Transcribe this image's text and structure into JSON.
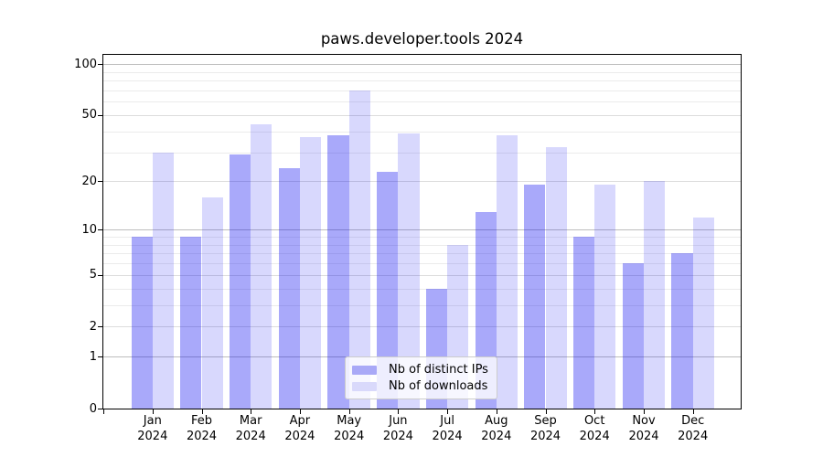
{
  "title": "paws.developer.tools 2024",
  "chart_data": {
    "type": "bar",
    "title": "paws.developer.tools 2024",
    "categories": [
      "Jan 2024",
      "Feb 2024",
      "Mar 2024",
      "Apr 2024",
      "May 2024",
      "Jun 2024",
      "Jul 2024",
      "Aug 2024",
      "Sep 2024",
      "Oct 2024",
      "Nov 2024",
      "Dec 2024"
    ],
    "x": {
      "months": [
        "Jan",
        "Feb",
        "Mar",
        "Apr",
        "May",
        "Jun",
        "Jul",
        "Aug",
        "Sep",
        "Oct",
        "Nov",
        "Dec"
      ],
      "year": "2024"
    },
    "series": [
      {
        "name": "Nb of distinct IPs",
        "fill": "rgba(10,10,240,0.35)",
        "swatch": "#a9a9f7",
        "values": [
          9,
          9,
          29,
          24,
          38,
          23,
          4,
          13,
          19,
          9,
          6,
          7
        ]
      },
      {
        "name": "Nb of downloads",
        "fill": "rgba(10,10,240,0.16)",
        "swatch": "#d9d9fb",
        "values": [
          30,
          16,
          44,
          37,
          70,
          39,
          8,
          38,
          32,
          19,
          20,
          12
        ]
      }
    ],
    "y_scale": "log10(1+y)",
    "y_ticks": [
      0,
      1,
      2,
      5,
      10,
      20,
      50,
      100
    ],
    "y_tick_labels": [
      "0",
      "1",
      "2",
      "5",
      "10",
      "20",
      "50",
      "100"
    ],
    "y_minor_gridlines": [
      3,
      4,
      6,
      7,
      8,
      9,
      30,
      40,
      60,
      70,
      80,
      90
    ],
    "y_decade_gridlines": [
      1,
      10,
      100
    ],
    "ylim": [
      0,
      114
    ],
    "grid": "horizontal",
    "legend_position": "lower center",
    "colors": {
      "grid_decade": "#bdbdbd",
      "grid_labeled": "#dcdcdc",
      "grid_minor": "#ebebeb",
      "axis": "#000000",
      "background": "#ffffff"
    }
  },
  "legend": {
    "items": [
      {
        "label": "Nb of distinct IPs"
      },
      {
        "label": "Nb of downloads"
      }
    ]
  }
}
